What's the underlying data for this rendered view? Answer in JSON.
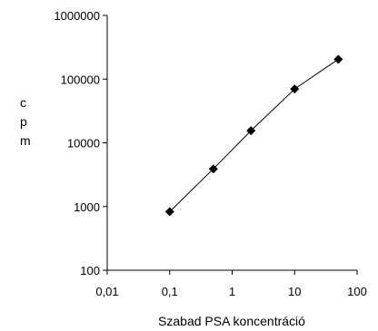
{
  "chart_data": {
    "type": "scatter",
    "title": "",
    "xlabel": "Szabad PSA koncentráció",
    "ylabel": "cpm",
    "ylabel_lines": [
      "c",
      "p",
      "m"
    ],
    "x_scale": "log",
    "y_scale": "log",
    "xlim": [
      0.01,
      100
    ],
    "ylim": [
      100,
      1000000
    ],
    "x_ticks": [
      0.01,
      0.1,
      1,
      10,
      100
    ],
    "x_tick_labels": [
      "0,01",
      "0,1",
      "1",
      "10",
      "100"
    ],
    "y_ticks": [
      100,
      1000,
      10000,
      100000,
      1000000
    ],
    "y_tick_labels": [
      "100",
      "1000",
      "10000",
      "100000",
      "1000000"
    ],
    "grid": false,
    "legend": "none",
    "series": [
      {
        "x": [
          0.1,
          0.5,
          2,
          10,
          50
        ],
        "y": [
          830,
          3900,
          15500,
          70000,
          205000
        ],
        "color": "#000000",
        "marker": "diamond",
        "line": true
      }
    ]
  }
}
